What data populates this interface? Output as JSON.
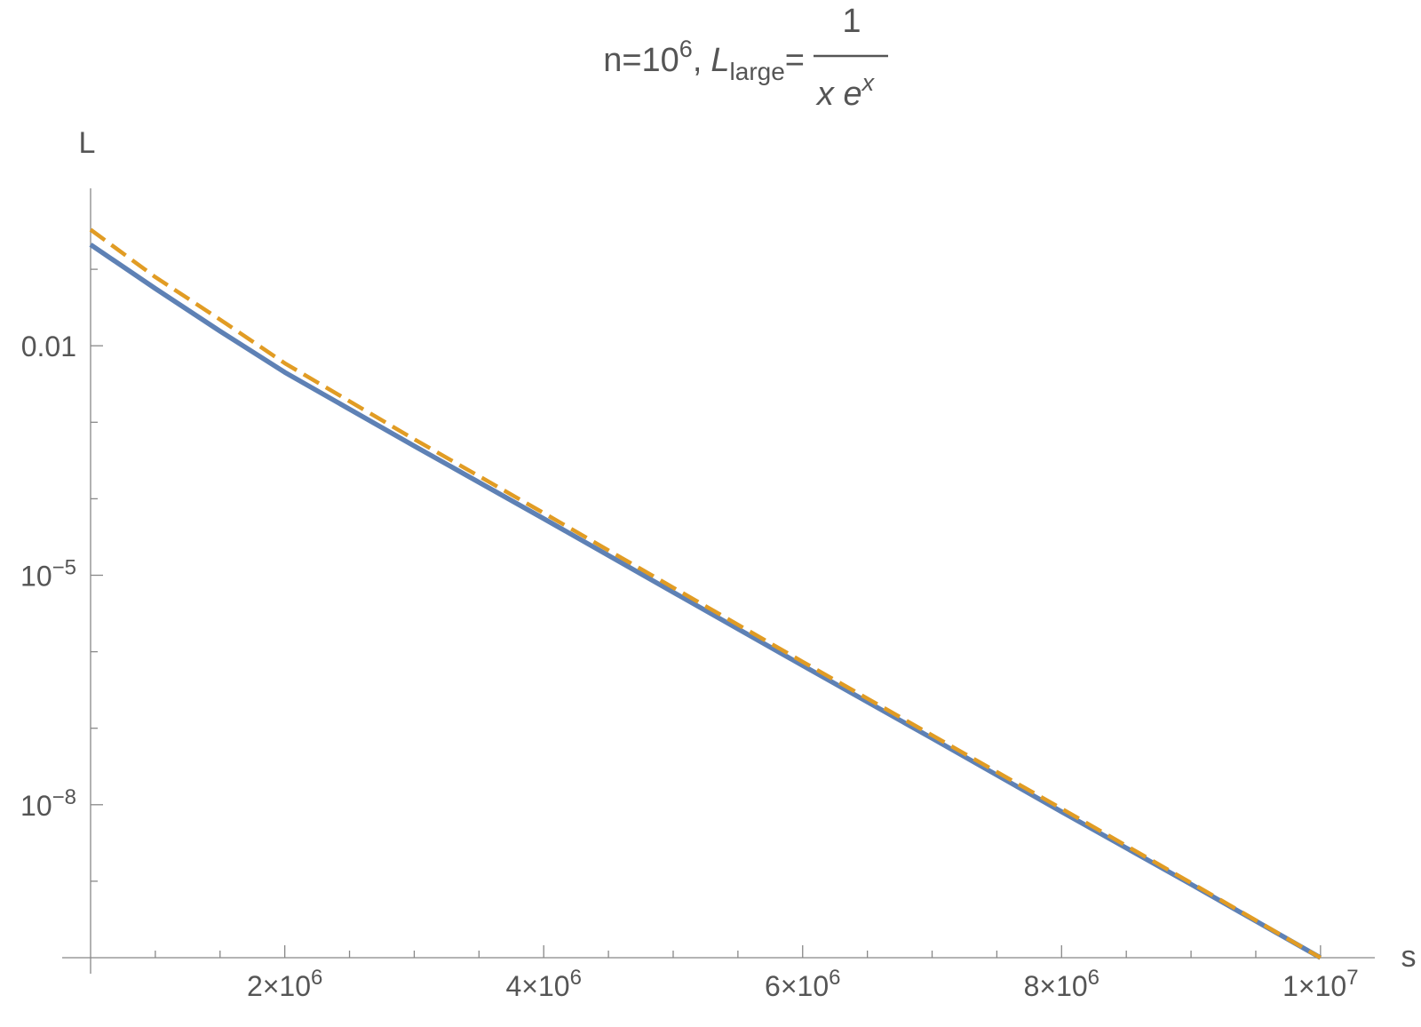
{
  "chart_data": {
    "type": "line",
    "title": {
      "n": "n=10",
      "n_exp": "6",
      "sep": ",",
      "lhs": "L",
      "lhs_sub": "large",
      "eq": "=",
      "numerator": "1",
      "denominator": "x e",
      "den_exp": "x"
    },
    "x_label": "s",
    "y_label": "L",
    "log_y": true,
    "x": [
      500000,
      1000000,
      1500000,
      2000000,
      3000000,
      4000000,
      5000000,
      6000000,
      7000000,
      8000000,
      9000000,
      10000000
    ],
    "series": [
      {
        "color": "#5e81b5",
        "dashed": false,
        "values": [
          0.21,
          0.056,
          0.0155,
          0.0045,
          0.00049,
          5.5e-05,
          6e-06,
          6.6e-07,
          7.4e-08,
          8.1e-09,
          9.1e-10,
          1e-10
        ]
      },
      {
        "color": "#e19c24",
        "dashed": true,
        "values": [
          0.33,
          0.079,
          0.022,
          0.0059,
          0.0006,
          6.5e-05,
          6.9e-06,
          7.4e-07,
          8.1e-08,
          8.9e-09,
          9.5e-10,
          1e-10
        ]
      }
    ],
    "xlim": [
      500000,
      10200000
    ],
    "ylim": [
      1e-10,
      1
    ],
    "xticks": [
      {
        "value": 2000000,
        "label": "2×10",
        "sup": "6"
      },
      {
        "value": 4000000,
        "label": "4×10",
        "sup": "6"
      },
      {
        "value": 6000000,
        "label": "6×10",
        "sup": "6"
      },
      {
        "value": 8000000,
        "label": "8×10",
        "sup": "6"
      },
      {
        "value": 10000000,
        "label": "1×10",
        "sup": "7"
      }
    ],
    "xminorticks": [
      1000000,
      1500000,
      2500000,
      3000000,
      3500000,
      4500000,
      5000000,
      5500000,
      6500000,
      7000000,
      7500000,
      8500000,
      9000000,
      9500000
    ],
    "yticks": [
      {
        "value": 0.01,
        "label": "0.01"
      },
      {
        "value": 1e-05,
        "label": "10",
        "sup": "−5"
      },
      {
        "value": 1e-08,
        "label": "10",
        "sup": "−8"
      }
    ],
    "yminorticks": [
      0.1,
      0.001,
      0.0001,
      1e-06,
      1e-07,
      1e-09
    ]
  }
}
